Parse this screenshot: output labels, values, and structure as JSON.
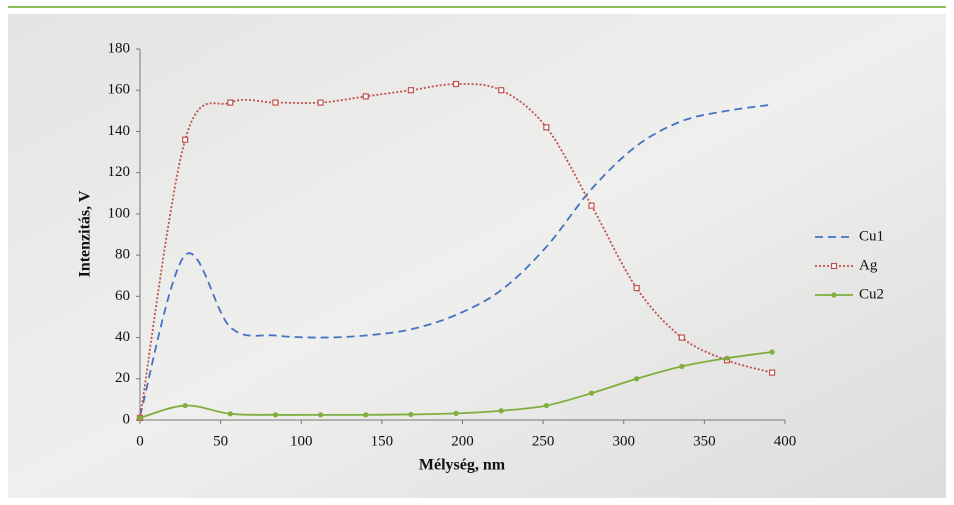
{
  "chart_data": {
    "type": "line",
    "x_label": "Mélység, nm",
    "y_label": "Intenzitás, V",
    "x": [
      0,
      28,
      56,
      84,
      112,
      140,
      168,
      196,
      224,
      252,
      280,
      308,
      336,
      364,
      392
    ],
    "series": [
      {
        "name": "Cu1",
        "color": "#4472c4",
        "line_style": "dashed",
        "marker": "none",
        "values": [
          2,
          80,
          45,
          41,
          40,
          41,
          44,
          51,
          63,
          84,
          112,
          133,
          145,
          150,
          153
        ]
      },
      {
        "name": "Ag",
        "color": "#c0504d",
        "line_style": "dotted",
        "marker": "square",
        "values": [
          1,
          136,
          154,
          154,
          154,
          157,
          160,
          163,
          160,
          142,
          104,
          64,
          40,
          29,
          23
        ]
      },
      {
        "name": "Cu2",
        "color": "#7fae3e",
        "line_style": "solid",
        "marker": "circle",
        "values": [
          1,
          7,
          3,
          2.5,
          2.5,
          2.5,
          2.7,
          3.2,
          4.5,
          7,
          13,
          20,
          26,
          30,
          33
        ]
      }
    ],
    "xlim": [
      0,
      400
    ],
    "xticks": [
      0,
      50,
      100,
      150,
      200,
      250,
      300,
      350,
      400
    ],
    "ylim": [
      0,
      180
    ],
    "yticks": [
      0,
      20,
      40,
      60,
      80,
      100,
      120,
      140,
      160,
      180
    ],
    "legend": "right"
  }
}
